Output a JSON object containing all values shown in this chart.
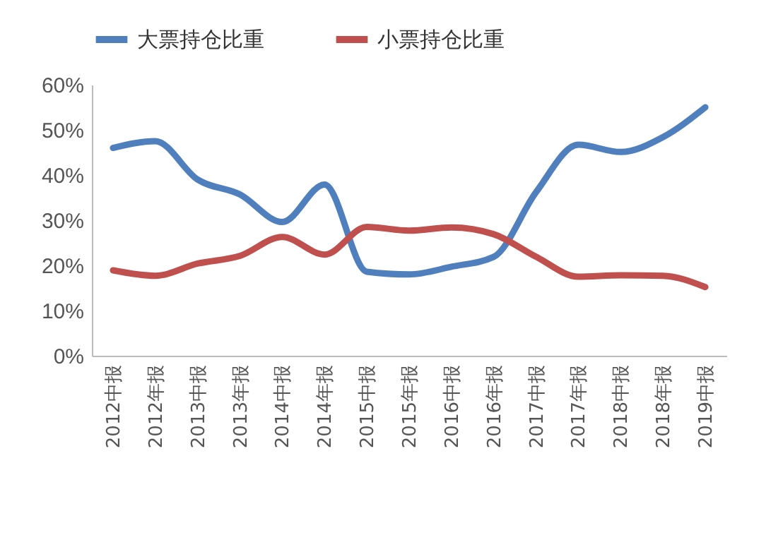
{
  "chart_data": {
    "type": "line",
    "categories": [
      "2012中报",
      "2012年报",
      "2013中报",
      "2013年报",
      "2014中报",
      "2014年报",
      "2015中报",
      "2015年报",
      "2016中报",
      "2016年报",
      "2017中报",
      "2017年报",
      "2018中报",
      "2018年报",
      "2019中报"
    ],
    "series": [
      {
        "name": "大票持仓比重",
        "color": "#4f7fbd",
        "values": [
          46.0,
          47.5,
          39.0,
          35.7,
          29.6,
          37.9,
          18.6,
          18.0,
          19.7,
          21.9,
          36.2,
          46.7,
          45.1,
          48.4,
          55.0
        ]
      },
      {
        "name": "小票持仓比重",
        "color": "#c0504d",
        "values": [
          18.9,
          17.7,
          20.4,
          22.1,
          26.3,
          22.4,
          28.5,
          27.7,
          28.4,
          26.9,
          21.9,
          17.5,
          17.8,
          17.7,
          15.2
        ]
      }
    ],
    "ylim": [
      0,
      60
    ],
    "yticks": [
      {
        "value": 0,
        "label": "0%"
      },
      {
        "value": 10,
        "label": "10%"
      },
      {
        "value": 20,
        "label": "20%"
      },
      {
        "value": 30,
        "label": "30%"
      },
      {
        "value": 40,
        "label": "40%"
      },
      {
        "value": 50,
        "label": "50%"
      },
      {
        "value": 60,
        "label": "60%"
      }
    ],
    "grid": false,
    "legend": "top",
    "marker": "none",
    "line_style": "solid"
  }
}
